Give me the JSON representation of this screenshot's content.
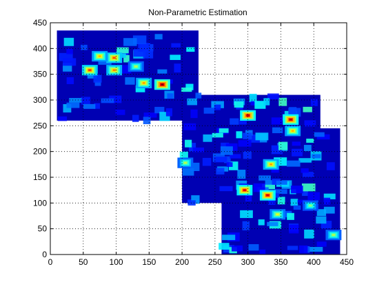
{
  "chart_data": {
    "type": "heatmap",
    "title": "Non-Parametric Estimation",
    "xlabel": "",
    "ylabel": "",
    "xlim": [
      0,
      450
    ],
    "ylim": [
      0,
      450
    ],
    "xticks": [
      0,
      50,
      100,
      150,
      200,
      250,
      300,
      350,
      400,
      450
    ],
    "yticks": [
      0,
      50,
      100,
      150,
      200,
      250,
      300,
      350,
      400,
      450
    ],
    "grid": true,
    "grid_style": "dotted",
    "colormap": "jet",
    "background_regions": [
      {
        "x": [
          10,
          225
        ],
        "y": [
          260,
          435
        ]
      },
      {
        "x": [
          200,
          410
        ],
        "y": [
          100,
          310
        ]
      },
      {
        "x": [
          260,
          440
        ],
        "y": [
          0,
          245
        ]
      }
    ],
    "hotspots": [
      {
        "x": 170,
        "y": 330,
        "value": 1.0
      },
      {
        "x": 300,
        "y": 270,
        "value": 0.95
      },
      {
        "x": 365,
        "y": 262,
        "value": 0.95
      },
      {
        "x": 330,
        "y": 115,
        "value": 0.92
      },
      {
        "x": 295,
        "y": 125,
        "value": 0.9
      },
      {
        "x": 60,
        "y": 358,
        "value": 0.82
      },
      {
        "x": 97,
        "y": 382,
        "value": 0.8
      },
      {
        "x": 75,
        "y": 385,
        "value": 0.7
      },
      {
        "x": 142,
        "y": 333,
        "value": 0.72
      },
      {
        "x": 97,
        "y": 358,
        "value": 0.75
      },
      {
        "x": 335,
        "y": 175,
        "value": 0.72
      },
      {
        "x": 368,
        "y": 240,
        "value": 0.7
      },
      {
        "x": 345,
        "y": 78,
        "value": 0.6
      },
      {
        "x": 430,
        "y": 38,
        "value": 0.55
      },
      {
        "x": 130,
        "y": 365,
        "value": 0.55
      },
      {
        "x": 205,
        "y": 178,
        "value": 0.55
      },
      {
        "x": 395,
        "y": 95,
        "value": 0.5
      }
    ]
  }
}
